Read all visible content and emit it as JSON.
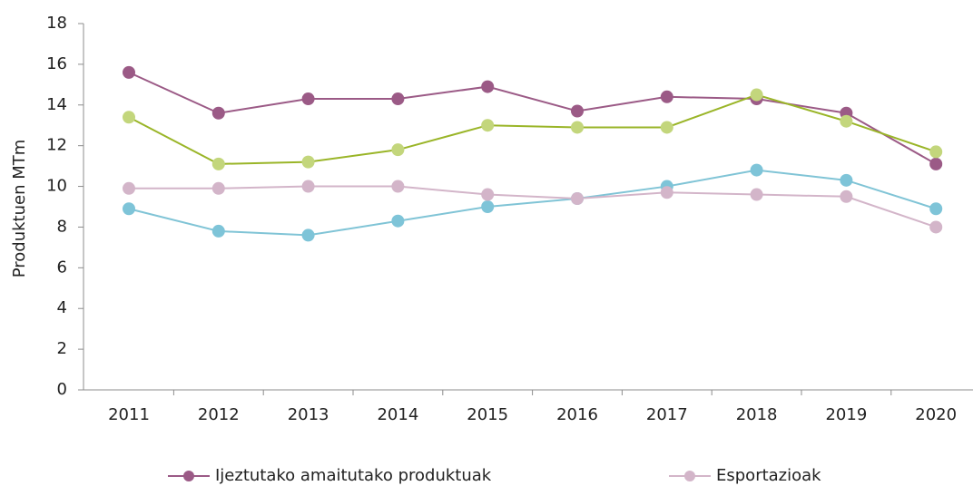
{
  "chart_data": {
    "type": "line",
    "y_label": "Produktuen MTm",
    "categories": [
      "2011",
      "2012",
      "2013",
      "2014",
      "2015",
      "2016",
      "2017",
      "2018",
      "2019",
      "2020"
    ],
    "series": [
      {
        "name": "Ijeztutako amaitutako produktuak",
        "color": "#9b5a86",
        "marker_color": "#9b5a86",
        "values": [
          15.6,
          13.6,
          14.3,
          14.3,
          14.9,
          13.7,
          14.4,
          14.3,
          13.6,
          11.1
        ]
      },
      {
        "color": "#9ab528",
        "marker_color": "#c3d67c",
        "values": [
          13.4,
          11.1,
          11.2,
          11.8,
          13.0,
          12.9,
          12.9,
          14.5,
          13.2,
          11.7
        ]
      },
      {
        "color": "#80c4d6",
        "marker_color": "#7ec4d8",
        "values": [
          8.9,
          7.8,
          7.6,
          8.3,
          9.0,
          9.4,
          10.0,
          10.8,
          10.3,
          8.9
        ]
      },
      {
        "name": "Esportazioak",
        "color": "#d3b5c9",
        "marker_color": "#d3b5c9",
        "values": [
          9.9,
          9.9,
          10.0,
          10.0,
          9.6,
          9.4,
          9.7,
          9.6,
          9.5,
          8.0
        ]
      }
    ],
    "ylim": [
      0,
      18
    ],
    "yticks": [
      0,
      2,
      4,
      6,
      8,
      10,
      12,
      14,
      16,
      18
    ],
    "grid": false
  }
}
